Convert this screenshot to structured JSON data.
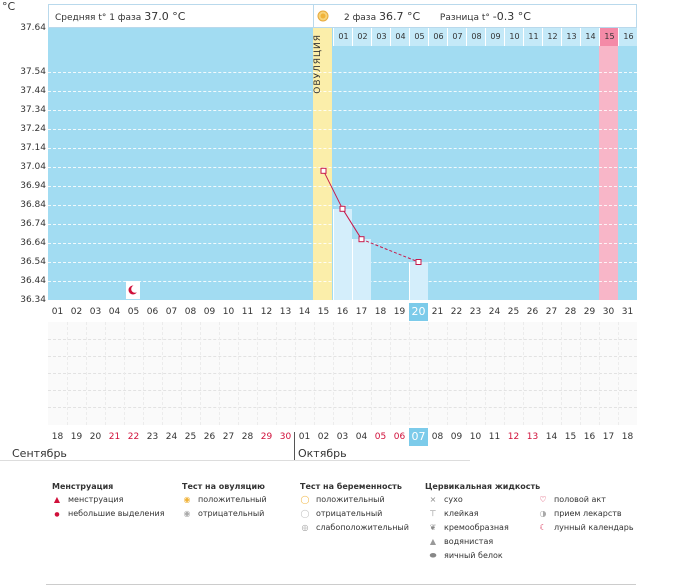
{
  "unit": "°C",
  "y_ticks": [
    "37.64",
    "37.54",
    "37.44",
    "37.34",
    "37.24",
    "37.14",
    "37.04",
    "36.94",
    "36.84",
    "36.74",
    "36.64",
    "36.54",
    "36.44",
    "36.34"
  ],
  "summary": {
    "phase1_label": "Средняя t° 1 фаза",
    "phase1_value": "37.0 °C",
    "phase2_label": "2 фаза",
    "phase2_value": "36.7 °C",
    "diff_label": "Разница t°",
    "diff_value": "-0.3 °C"
  },
  "ovulation_label": "ОВУЛЯЦИЯ",
  "cycle_days": [
    "01",
    "02",
    "03",
    "04",
    "05",
    "06",
    "07",
    "08",
    "09",
    "10",
    "11",
    "12",
    "13",
    "14",
    "15",
    "16"
  ],
  "cycle_days_highlight": "15",
  "cycle_days_dates": [
    "01",
    "02",
    "03",
    "04",
    "05",
    "06",
    "07",
    "08",
    "09",
    "10",
    "11",
    "12",
    "13",
    "14",
    "15",
    "16",
    "17",
    "18",
    "19",
    "20",
    "21",
    "22",
    "23",
    "24",
    "25",
    "26",
    "27",
    "28",
    "29",
    "30",
    "31"
  ],
  "cycle_days_dates_selected": "20",
  "calendar_days": [
    "18",
    "19",
    "20",
    "21",
    "22",
    "23",
    "24",
    "25",
    "26",
    "27",
    "28",
    "29",
    "30",
    "01",
    "02",
    "03",
    "04",
    "05",
    "06",
    "07",
    "08",
    "09",
    "10",
    "11",
    "12",
    "13",
    "14",
    "15",
    "16",
    "17",
    "18"
  ],
  "calendar_red_idx": [
    3,
    4,
    11,
    12,
    17,
    18,
    24,
    25
  ],
  "calendar_selected": "07",
  "month_left": "Сентябрь",
  "month_right": "Октябрь",
  "chart_data": {
    "type": "line",
    "ylim": [
      36.34,
      37.64
    ],
    "x_days": [
      15,
      16,
      17,
      20
    ],
    "temps": [
      37.02,
      36.82,
      36.66,
      36.54
    ],
    "solid_segments": [
      [
        15,
        16
      ],
      [
        16,
        17
      ]
    ],
    "dashed_segments": [
      [
        17,
        20
      ]
    ]
  },
  "legend": {
    "menstr": {
      "title": "Менструация",
      "items": [
        "менструация",
        "небольшие выделения"
      ]
    },
    "ovtest": {
      "title": "Тест на овуляцию",
      "items": [
        "положительный",
        "отрицательный"
      ]
    },
    "pregtest": {
      "title": "Тест на беременность",
      "items": [
        "положительный",
        "отрицательный",
        "слабоположительный"
      ]
    },
    "cerv": {
      "title": "Цервикальная жидкость",
      "items": [
        "сухо",
        "клейкая",
        "кремообразная",
        "водянистая",
        "яичный белок"
      ]
    },
    "other": {
      "items": [
        "половой акт",
        "прием лекарств",
        "лунный календарь"
      ]
    }
  },
  "colors": {
    "plot_bg": "#a2dcf2",
    "ovulation": "#fbeeaa",
    "highlight": "#f8b6c8",
    "line": "#c8194b",
    "selected": "#7ccbea"
  }
}
